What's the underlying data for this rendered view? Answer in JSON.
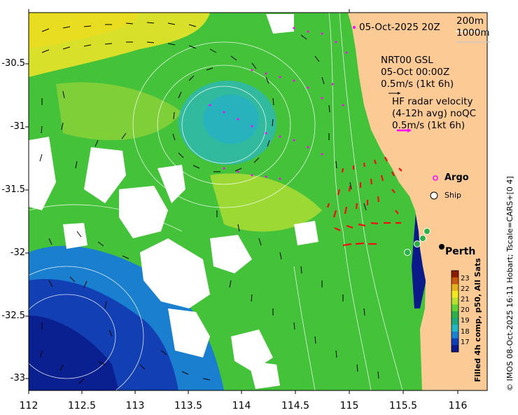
{
  "header": {
    "timestamp": "05-Oct-2025 20Z",
    "depth_contour_1": "200m",
    "depth_contour_2": "1000m"
  },
  "info": {
    "line1": "NRT00 GSL",
    "line2": "05-Oct 00:00Z",
    "line3": "0.5m/s (1kt 6h)",
    "radar_line1": "HF radar velocity",
    "radar_line2": "(4-12h avg) noQC",
    "radar_line3": "0.5m/s (1kt 6h)"
  },
  "legend": {
    "argo_label": "Argo",
    "ship_label": "Ship",
    "city_label": "Perth"
  },
  "axes": {
    "x_ticks": [
      "112",
      "112.5",
      "113",
      "113.5",
      "114",
      "114.5",
      "115",
      "115.5",
      "116"
    ],
    "y_ticks": [
      "-30.5",
      "-31",
      "-31.5",
      "-32",
      "-32.5",
      "-33"
    ]
  },
  "colorbar": {
    "ticks": [
      "23",
      "22",
      "21",
      "20",
      "19",
      "18",
      "17"
    ],
    "colors": [
      "#8b1a00",
      "#c75a10",
      "#e6b01e",
      "#f0ea20",
      "#b8e030",
      "#5ed236",
      "#2bb14a",
      "#1aa884",
      "#20b8c8",
      "#1a80d0",
      "#1040b8",
      "#0a1a88"
    ]
  },
  "side_text": {
    "caption": "Filled 4h comp, p50, All Sats",
    "credit": "© IMOS 08-Oct-2025 16:11 Hobart; Tscale=CARS+[0 4]"
  }
}
